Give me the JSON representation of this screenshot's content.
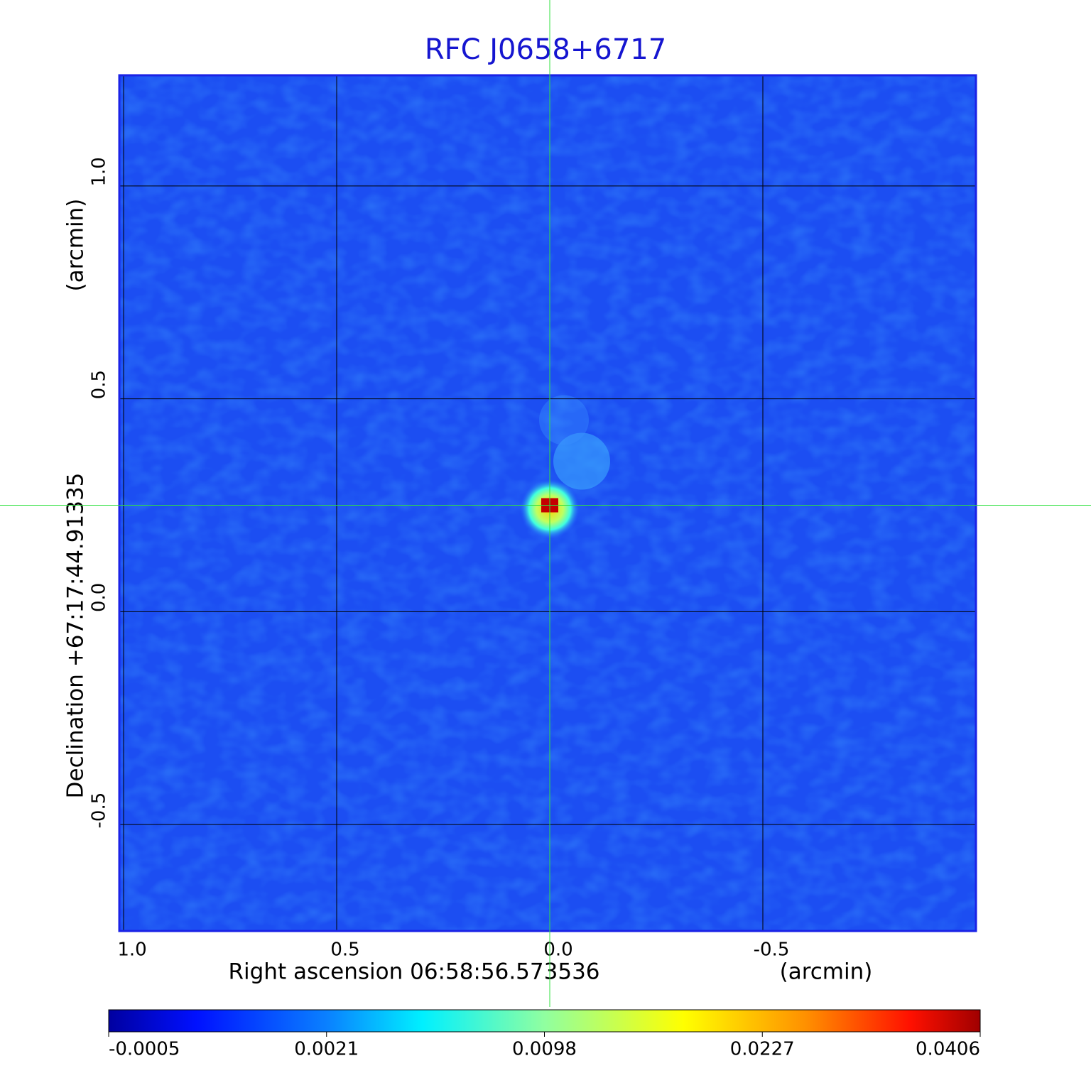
{
  "chart_data": {
    "type": "image",
    "title": "RFC J0658+6717",
    "x_label": "Right ascension  06:58:56.573536",
    "x_unit": "(arcmin)",
    "y_label": "Declination  +67:17:44.91335",
    "y_unit": "(arcmin)",
    "xlim": [
      1.01,
      -1.0
    ],
    "ylim": [
      -0.75,
      1.26
    ],
    "xticks": [
      {
        "value": 1.0,
        "label": "1.0"
      },
      0.5,
      {
        "value": 0.0,
        "label": "0.0"
      },
      -0.5
    ],
    "yticks": [
      -0.5,
      {
        "value": 0.0,
        "label": "0.0"
      },
      0.5,
      {
        "value": 1.0,
        "label": "1.0"
      }
    ],
    "grid": true,
    "source": {
      "x": 0.0,
      "y": 0.25,
      "peak": 0.0406
    },
    "colorbar": {
      "lim": [
        -0.0005,
        0.0406
      ],
      "ticks": [
        -0.0005,
        0.0021,
        0.0098,
        0.0227,
        0.0406
      ]
    }
  }
}
